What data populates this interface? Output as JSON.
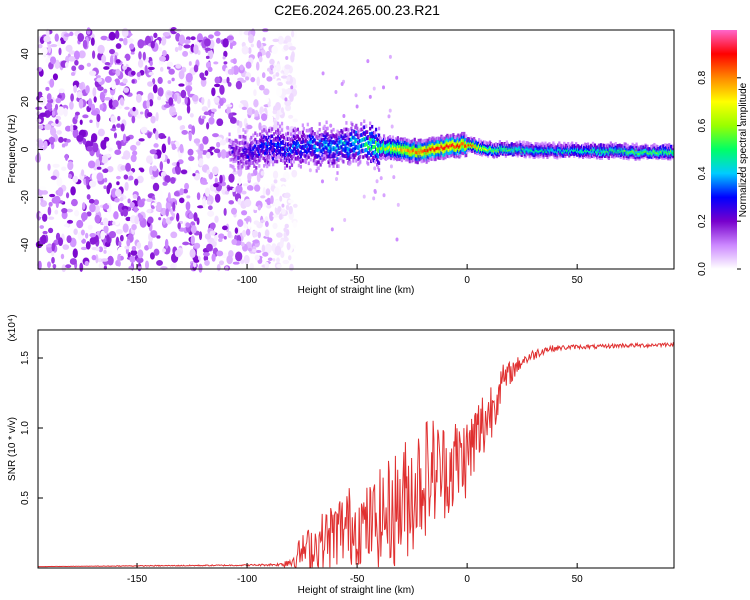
{
  "title": "C2E6.2024.265.00.23.R21",
  "chart_data": [
    {
      "type": "heatmap",
      "name": "spectrogram",
      "xlabel": "Height of straight line (km)",
      "ylabel": "Frequency (Hz)",
      "xlim": [
        -195,
        94
      ],
      "ylim": [
        -50,
        50
      ],
      "xticks": [
        -150,
        -100,
        -50,
        0,
        50
      ],
      "yticks": [
        -40,
        -20,
        0,
        20,
        40
      ],
      "colorbar": {
        "label": "Normalized spectral amplitude",
        "range": [
          0.0,
          1.0
        ],
        "ticks": [
          0.0,
          0.2,
          0.4,
          0.6,
          0.8
        ],
        "tick_labels": [
          "0.0",
          "0.2",
          "0.4",
          "0.6",
          "0.8"
        ],
        "colors": [
          "#ffffff",
          "#cc88ff",
          "#7700cc",
          "#0000ff",
          "#00ccff",
          "#00ff66",
          "#99ff00",
          "#ffff00",
          "#ff8800",
          "#ff0000",
          "#ff66cc"
        ]
      },
      "ridge": {
        "description": "main signal ridge frequency vs height",
        "x": [
          -108,
          -100,
          -90,
          -80,
          -70,
          -60,
          -50,
          -40,
          -30,
          -20,
          -10,
          0,
          10,
          20,
          40,
          60,
          80,
          94
        ],
        "freq": [
          -1,
          -2,
          1,
          0,
          2,
          1,
          3,
          1,
          0,
          -1,
          1,
          2,
          0,
          0,
          -0.5,
          -0.5,
          -1,
          -1
        ],
        "amplitude": [
          0.2,
          0.25,
          0.3,
          0.32,
          0.35,
          0.38,
          0.42,
          0.55,
          0.75,
          0.85,
          0.9,
          0.85,
          0.6,
          0.5,
          0.45,
          0.5,
          0.55,
          0.55
        ]
      },
      "noise_region": {
        "x_start": -195,
        "x_end": -88,
        "max_amplitude": 0.2
      }
    },
    {
      "type": "line",
      "name": "snr",
      "xlabel": "Height of straight line (km)",
      "ylabel": "SNR (10 * v/v)",
      "scale_label": "(x10⁴)",
      "color": "#e03030",
      "xlim": [
        -195,
        94
      ],
      "ylim": [
        0.0,
        1.7
      ],
      "xticks": [
        -150,
        -100,
        -50,
        0,
        50
      ],
      "yticks": [
        0.5,
        1.0,
        1.5
      ],
      "ytick_labels": [
        "0.5",
        "1.0",
        "1.5"
      ],
      "x": [
        -195,
        -150,
        -100,
        -85,
        -80,
        -75,
        -70,
        -65,
        -60,
        -55,
        -50,
        -45,
        -40,
        -35,
        -30,
        -25,
        -20,
        -15,
        -10,
        -5,
        0,
        5,
        10,
        15,
        20,
        25,
        30,
        35,
        40,
        50,
        60,
        70,
        80,
        94
      ],
      "y": [
        0.01,
        0.015,
        0.02,
        0.025,
        0.05,
        0.12,
        0.15,
        0.2,
        0.25,
        0.3,
        0.3,
        0.3,
        0.35,
        0.4,
        0.45,
        0.55,
        0.65,
        0.7,
        0.7,
        0.75,
        0.8,
        0.95,
        1.1,
        1.3,
        1.4,
        1.48,
        1.52,
        1.56,
        1.57,
        1.58,
        1.58,
        1.59,
        1.59,
        1.6
      ],
      "noise_amp": [
        0.0,
        0.003,
        0.005,
        0.01,
        0.06,
        0.12,
        0.18,
        0.22,
        0.25,
        0.3,
        0.28,
        0.3,
        0.35,
        0.4,
        0.45,
        0.45,
        0.45,
        0.4,
        0.35,
        0.35,
        0.3,
        0.3,
        0.25,
        0.15,
        0.08,
        0.05,
        0.04,
        0.03,
        0.02,
        0.015,
        0.015,
        0.015,
        0.015,
        0.015
      ]
    }
  ]
}
